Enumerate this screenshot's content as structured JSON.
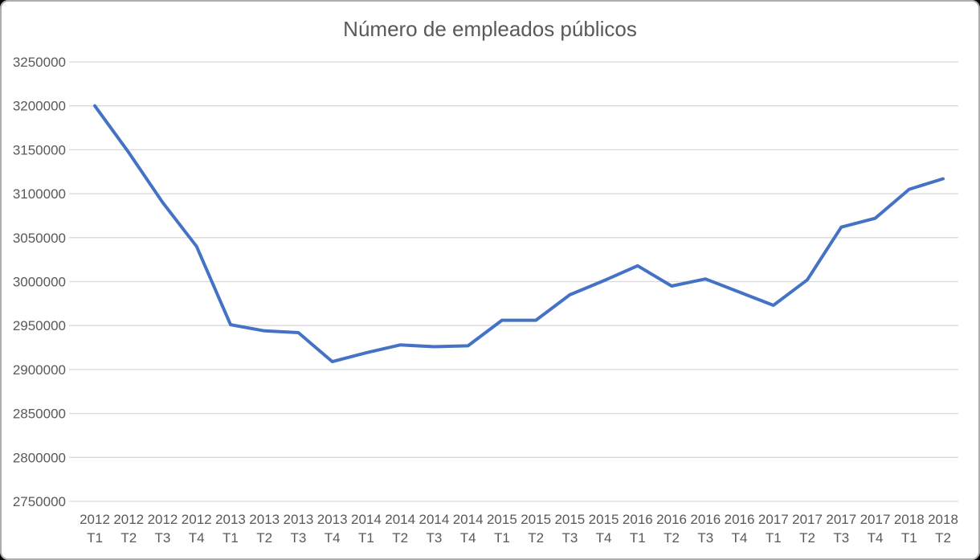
{
  "chart_data": {
    "type": "line",
    "title": "Número de empleados públicos",
    "legend": "none",
    "grid": true,
    "ylim": [
      2750000,
      3250000
    ],
    "ytick_step": 50000,
    "yticks": [
      3250000,
      3200000,
      3150000,
      3100000,
      3050000,
      3000000,
      2950000,
      2900000,
      2850000,
      2800000,
      2750000
    ],
    "points": [
      {
        "year": "2012",
        "quarter": "T1",
        "value": 3200000
      },
      {
        "year": "2012",
        "quarter": "T2",
        "value": 3147000
      },
      {
        "year": "2012",
        "quarter": "T3",
        "value": 3090000
      },
      {
        "year": "2012",
        "quarter": "T4",
        "value": 3040000
      },
      {
        "year": "2013",
        "quarter": "T1",
        "value": 2951000
      },
      {
        "year": "2013",
        "quarter": "T2",
        "value": 2944000
      },
      {
        "year": "2013",
        "quarter": "T3",
        "value": 2942000
      },
      {
        "year": "2013",
        "quarter": "T4",
        "value": 2909000
      },
      {
        "year": "2014",
        "quarter": "T1",
        "value": 2919000
      },
      {
        "year": "2014",
        "quarter": "T2",
        "value": 2928000
      },
      {
        "year": "2014",
        "quarter": "T3",
        "value": 2926000
      },
      {
        "year": "2014",
        "quarter": "T4",
        "value": 2927000
      },
      {
        "year": "2015",
        "quarter": "T1",
        "value": 2956000
      },
      {
        "year": "2015",
        "quarter": "T2",
        "value": 2956000
      },
      {
        "year": "2015",
        "quarter": "T3",
        "value": 2985000
      },
      {
        "year": "2015",
        "quarter": "T4",
        "value": 3001000
      },
      {
        "year": "2016",
        "quarter": "T1",
        "value": 3018000
      },
      {
        "year": "2016",
        "quarter": "T2",
        "value": 2995000
      },
      {
        "year": "2016",
        "quarter": "T3",
        "value": 3003000
      },
      {
        "year": "2016",
        "quarter": "T4",
        "value": 2988000
      },
      {
        "year": "2017",
        "quarter": "T1",
        "value": 2973000
      },
      {
        "year": "2017",
        "quarter": "T2",
        "value": 3002000
      },
      {
        "year": "2017",
        "quarter": "T3",
        "value": 3062000
      },
      {
        "year": "2017",
        "quarter": "T4",
        "value": 3072000
      },
      {
        "year": "2018",
        "quarter": "T1",
        "value": 3105000
      },
      {
        "year": "2018",
        "quarter": "T2",
        "value": 3117000
      }
    ],
    "colors": {
      "line": "#4472C4",
      "grid": "#D9D9D9",
      "text": "#595959",
      "background": "#FFFFFF",
      "border": "#AEAEAE"
    }
  }
}
